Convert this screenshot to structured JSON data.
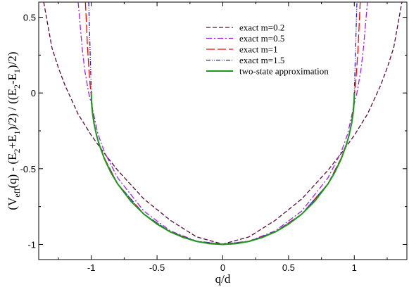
{
  "chart_data": {
    "type": "line",
    "xlabel": "q/d",
    "ylabel": {
      "prefix": "(V",
      "sub1": "eff",
      "mid1": "(q) - (E",
      "sub2": "2",
      "mid2": "+E",
      "sub3": "1",
      "mid3": ")/2) / ((E",
      "sub4": "2",
      "mid4": "-E",
      "sub5": "1",
      "suffix": ")/2)"
    },
    "xlim": [
      -1.4,
      1.4
    ],
    "ylim": [
      -1.1,
      0.6
    ],
    "x_ticks": [
      {
        "value": -1,
        "label": "-1"
      },
      {
        "value": -0.5,
        "label": "-0.5"
      },
      {
        "value": 0,
        "label": "0"
      },
      {
        "value": 0.5,
        "label": "0.5"
      },
      {
        "value": 1,
        "label": "1"
      }
    ],
    "y_ticks": [
      {
        "value": 0.5,
        "label": "0.5"
      },
      {
        "value": 0,
        "label": "0"
      },
      {
        "value": -0.5,
        "label": "-0.5"
      },
      {
        "value": -1,
        "label": "-1"
      }
    ],
    "grid": false,
    "legend_position": "top-right",
    "series": [
      {
        "name": "exact  m=0.2",
        "color": "#5a0a3c",
        "dash": "dashed",
        "x": [
          -1.362,
          -1.3,
          -1.25,
          -1.2,
          -1.1,
          -1.0,
          -0.9,
          -0.8,
          -0.6,
          -0.4,
          -0.2,
          0,
          0.2,
          0.4,
          0.6,
          0.8,
          0.9,
          1.0,
          1.1,
          1.2,
          1.25,
          1.3,
          1.362
        ],
        "y": [
          0.6,
          0.3,
          0.165,
          0.05,
          -0.14,
          -0.28,
          -0.4,
          -0.51,
          -0.7,
          -0.84,
          -0.95,
          -0.998,
          -0.95,
          -0.84,
          -0.7,
          -0.51,
          -0.4,
          -0.28,
          -0.14,
          0.05,
          0.165,
          0.3,
          0.6
        ]
      },
      {
        "name": "exact  m=0.5",
        "color": "#a020f0",
        "dash": "dash-dot",
        "x": [
          -1.1,
          -1.07,
          -1.05,
          -1.02,
          -1.0,
          -0.98,
          -0.95,
          -0.9,
          -0.8,
          -0.6,
          -0.4,
          -0.2,
          0,
          0.2,
          0.4,
          0.6,
          0.8,
          0.9,
          0.95,
          0.98,
          1.0,
          1.02,
          1.05,
          1.07,
          1.1
        ],
        "y": [
          0.6,
          0.3,
          0.15,
          0.0,
          -0.07,
          -0.15,
          -0.27,
          -0.39,
          -0.56,
          -0.78,
          -0.91,
          -0.978,
          -0.998,
          -0.978,
          -0.91,
          -0.78,
          -0.56,
          -0.39,
          -0.27,
          -0.15,
          -0.07,
          0.0,
          0.15,
          0.3,
          0.6
        ]
      },
      {
        "name": "exact  m=1",
        "color": "#ff0000",
        "dash": "long-dash",
        "x": [
          -1.045,
          -1.03,
          -1.02,
          -1.01,
          -1.0,
          -0.99,
          -0.97,
          -0.95,
          -0.9,
          -0.8,
          -0.6,
          -0.4,
          -0.2,
          0,
          0.2,
          0.4,
          0.6,
          0.8,
          0.9,
          0.95,
          0.97,
          0.99,
          1.0,
          1.01,
          1.02,
          1.03,
          1.045
        ],
        "y": [
          0.6,
          0.32,
          0.18,
          0.06,
          -0.02,
          -0.12,
          -0.24,
          -0.31,
          -0.43,
          -0.6,
          -0.8,
          -0.917,
          -0.98,
          -0.999,
          -0.98,
          -0.917,
          -0.8,
          -0.6,
          -0.43,
          -0.31,
          -0.24,
          -0.12,
          -0.02,
          0.06,
          0.18,
          0.32,
          0.6
        ]
      },
      {
        "name": "exact  m=1.5",
        "color": "#2020c8",
        "dash": "dash-dot-dot",
        "x": [
          -1.02,
          -1.01,
          -1.005,
          -1.0,
          -0.995,
          -0.98,
          -0.95,
          -0.9,
          -0.8,
          -0.6,
          -0.4,
          -0.2,
          0,
          0.2,
          0.4,
          0.6,
          0.8,
          0.9,
          0.95,
          0.98,
          0.995,
          1.0,
          1.005,
          1.01,
          1.02
        ],
        "y": [
          0.6,
          0.3,
          0.15,
          0.0,
          -0.1,
          -0.2,
          -0.31,
          -0.435,
          -0.6,
          -0.8,
          -0.917,
          -0.98,
          -0.999,
          -0.98,
          -0.917,
          -0.8,
          -0.6,
          -0.435,
          -0.31,
          -0.2,
          -0.1,
          0.0,
          0.15,
          0.3,
          0.6
        ]
      },
      {
        "name": "two-state approximation",
        "color": "#1a9a1a",
        "dash": "solid",
        "x": [
          -1.0,
          -0.999,
          -0.995,
          -0.99,
          -0.98,
          -0.96,
          -0.94,
          -0.9,
          -0.85,
          -0.8,
          -0.7,
          -0.6,
          -0.5,
          -0.4,
          -0.3,
          -0.2,
          -0.1,
          0,
          0.1,
          0.2,
          0.3,
          0.4,
          0.5,
          0.6,
          0.7,
          0.8,
          0.85,
          0.9,
          0.94,
          0.96,
          0.98,
          0.99,
          0.995,
          0.999,
          1.0
        ],
        "y": [
          0.0,
          -0.045,
          -0.1,
          -0.141,
          -0.199,
          -0.28,
          -0.341,
          -0.436,
          -0.527,
          -0.6,
          -0.714,
          -0.8,
          -0.866,
          -0.917,
          -0.954,
          -0.98,
          -0.995,
          -1.0,
          -0.995,
          -0.98,
          -0.954,
          -0.917,
          -0.866,
          -0.8,
          -0.714,
          -0.6,
          -0.527,
          -0.436,
          -0.341,
          -0.28,
          -0.199,
          -0.141,
          -0.1,
          -0.045,
          0.0
        ]
      }
    ]
  }
}
